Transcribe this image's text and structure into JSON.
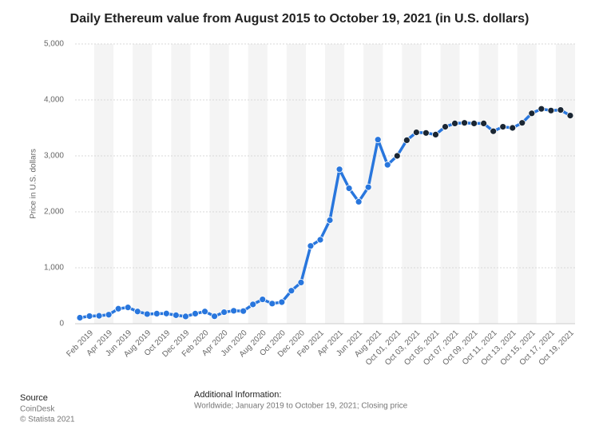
{
  "chart_data": {
    "type": "line",
    "title": "Daily Ethereum value from August 2015 to October 19, 2021 (in U.S. dollars)",
    "y_label": "Price in U.S. dollars",
    "categories": [
      null,
      "Feb 2019",
      null,
      "Apr 2019",
      null,
      "Jun 2019",
      null,
      "Aug 2019",
      null,
      "Oct 2019",
      null,
      "Dec 2019",
      null,
      "Feb 2020",
      null,
      "Apr 2020",
      null,
      "Jun 2020",
      null,
      "Aug 2020",
      null,
      "Oct 2020",
      null,
      "Dec 2020",
      null,
      "Feb 2021",
      null,
      "Apr 2021",
      null,
      "Jun 2021",
      null,
      "Aug 2021",
      null,
      "Oct 01, 2021",
      null,
      "Oct 03, 2021",
      null,
      "Oct 05, 2021",
      null,
      "Oct 07, 2021",
      null,
      "Oct 09, 2021",
      null,
      "Oct 11, 2021",
      null,
      "Oct 13, 2021",
      null,
      "Oct 15, 2021",
      null,
      "Oct 17, 2021",
      null,
      "Oct 19, 2021"
    ],
    "series": [
      {
        "name": "Price",
        "color": "#2876dd",
        "values": [
          107,
          136,
          141,
          161,
          268,
          291,
          218,
          172,
          180,
          182,
          152,
          130,
          180,
          218,
          133,
          206,
          231,
          226,
          345,
          435,
          360,
          386,
          590,
          737,
          1390,
          1500,
          1850,
          2760,
          2420,
          2180,
          2440,
          3290,
          2840,
          3000,
          3280,
          3420,
          3410,
          3380,
          3520,
          3580,
          3590,
          3580,
          3580,
          3440,
          3520,
          3500,
          3590,
          3760,
          3840,
          3810,
          3820,
          3720
        ]
      }
    ],
    "marker_colors": [
      "#2876dd",
      "#2876dd",
      "#2876dd",
      "#2876dd",
      "#2876dd",
      "#2876dd",
      "#2876dd",
      "#2876dd",
      "#2876dd",
      "#2876dd",
      "#2876dd",
      "#2876dd",
      "#2876dd",
      "#2876dd",
      "#2876dd",
      "#2876dd",
      "#2876dd",
      "#2876dd",
      "#2876dd",
      "#2876dd",
      "#2876dd",
      "#2876dd",
      "#2876dd",
      "#2876dd",
      "#2876dd",
      "#2876dd",
      "#2876dd",
      "#2876dd",
      "#2876dd",
      "#2876dd",
      "#2876dd",
      "#2876dd",
      "#2876dd",
      "#1a2633",
      "#1a2633",
      "#1a2633",
      "#1a2633",
      "#1a2633",
      "#1a2633",
      "#1a2633",
      "#1a2633",
      "#1a2633",
      "#1a2633",
      "#1a2633",
      "#1a2633",
      "#1a2633",
      "#1a2633",
      "#1a2633",
      "#1a2633",
      "#1a2633",
      "#1a2633",
      "#1a2633"
    ],
    "ylim": [
      0,
      5000
    ],
    "yticks": [
      0,
      {
        "value": 1000,
        "label": "1,000"
      },
      {
        "value": 2000,
        "label": "2,000"
      },
      {
        "value": 3000,
        "label": "3,000"
      },
      {
        "value": 4000,
        "label": "4,000"
      },
      {
        "value": 5000,
        "label": "5,000"
      }
    ],
    "grid": true,
    "source_title": "Source",
    "source": "CoinDesk",
    "copyright": "© Statista 2021",
    "info_title": "Additional Information:",
    "info": "Worldwide; January 2019 to October 19, 2021; Closing price"
  }
}
